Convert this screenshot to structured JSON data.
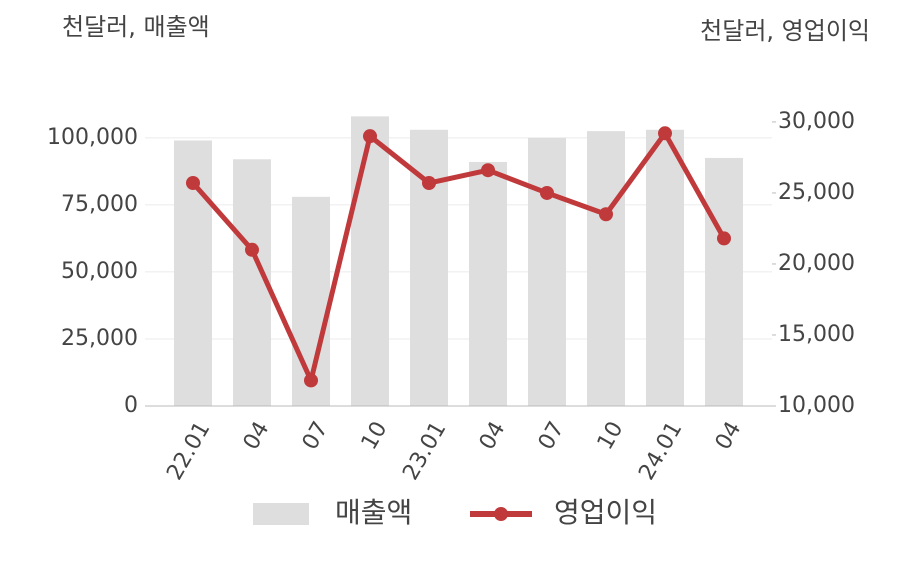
{
  "chart_data": {
    "type": "bar_line",
    "y_unit_label": "천달러, 매출액",
    "y2_unit_label": "천달러, 영업이익",
    "categories": [
      "22.01",
      "04",
      "07",
      "10",
      "23.01",
      "04",
      "07",
      "10",
      "24.01",
      "04"
    ],
    "series": [
      {
        "name": "매출액",
        "type": "bar",
        "color": "#dedede",
        "axis": "y",
        "values": [
          99000,
          92000,
          78000,
          108000,
          103000,
          91000,
          100000,
          102500,
          103000,
          92500
        ]
      },
      {
        "name": "영업이익",
        "type": "line",
        "color": "#c0393b",
        "axis": "y2",
        "values": [
          25700,
          21000,
          11800,
          29000,
          25700,
          26600,
          25000,
          23500,
          29200,
          21800
        ]
      }
    ],
    "ylim": [
      0,
      110000
    ],
    "yticks": [
      0,
      {
        "value": 25000,
        "label": "25,000"
      },
      {
        "value": 50000,
        "label": "50,000"
      },
      {
        "value": 75000,
        "label": "75,000"
      },
      {
        "value": 100000,
        "label": "100,000"
      }
    ],
    "y2lim": [
      10000,
      30770
    ],
    "y2ticks": [
      {
        "value": 10000,
        "label": "10,000"
      },
      {
        "value": 15000,
        "label": "15,000"
      },
      {
        "value": 20000,
        "label": "20,000"
      },
      {
        "value": 25000,
        "label": "25,000"
      },
      {
        "value": 30000,
        "label": "30,000"
      }
    ],
    "grid": true,
    "legend": "bottom"
  }
}
